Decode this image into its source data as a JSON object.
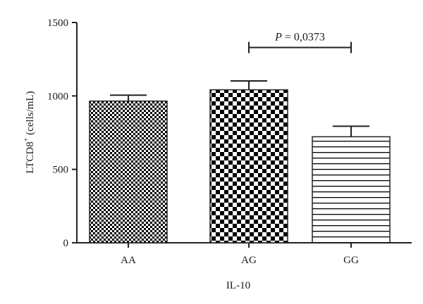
{
  "chart_data": {
    "type": "bar",
    "categories": [
      "AA",
      "AG",
      "GG"
    ],
    "values": [
      965,
      1042,
      722
    ],
    "errors": [
      40,
      60,
      72
    ],
    "patterns": [
      "fine-checker",
      "coarse-checker",
      "horizontal-lines"
    ],
    "ylim": [
      0,
      1500
    ],
    "yticks": [
      0,
      500,
      1000,
      1500
    ],
    "xlabel": "IL-10",
    "ylabel_main": "LTCD8",
    "ylabel_sup": "+",
    "ylabel_unit": " (cells/mL)",
    "annotation": {
      "p_symbol": "P",
      "p_value": " = 0,0373",
      "from": "AG",
      "to": "GG",
      "y": 1330
    },
    "colors": {
      "axis": "#222222",
      "bar_dark": "#000000",
      "bar_light": "#ffffff"
    }
  }
}
